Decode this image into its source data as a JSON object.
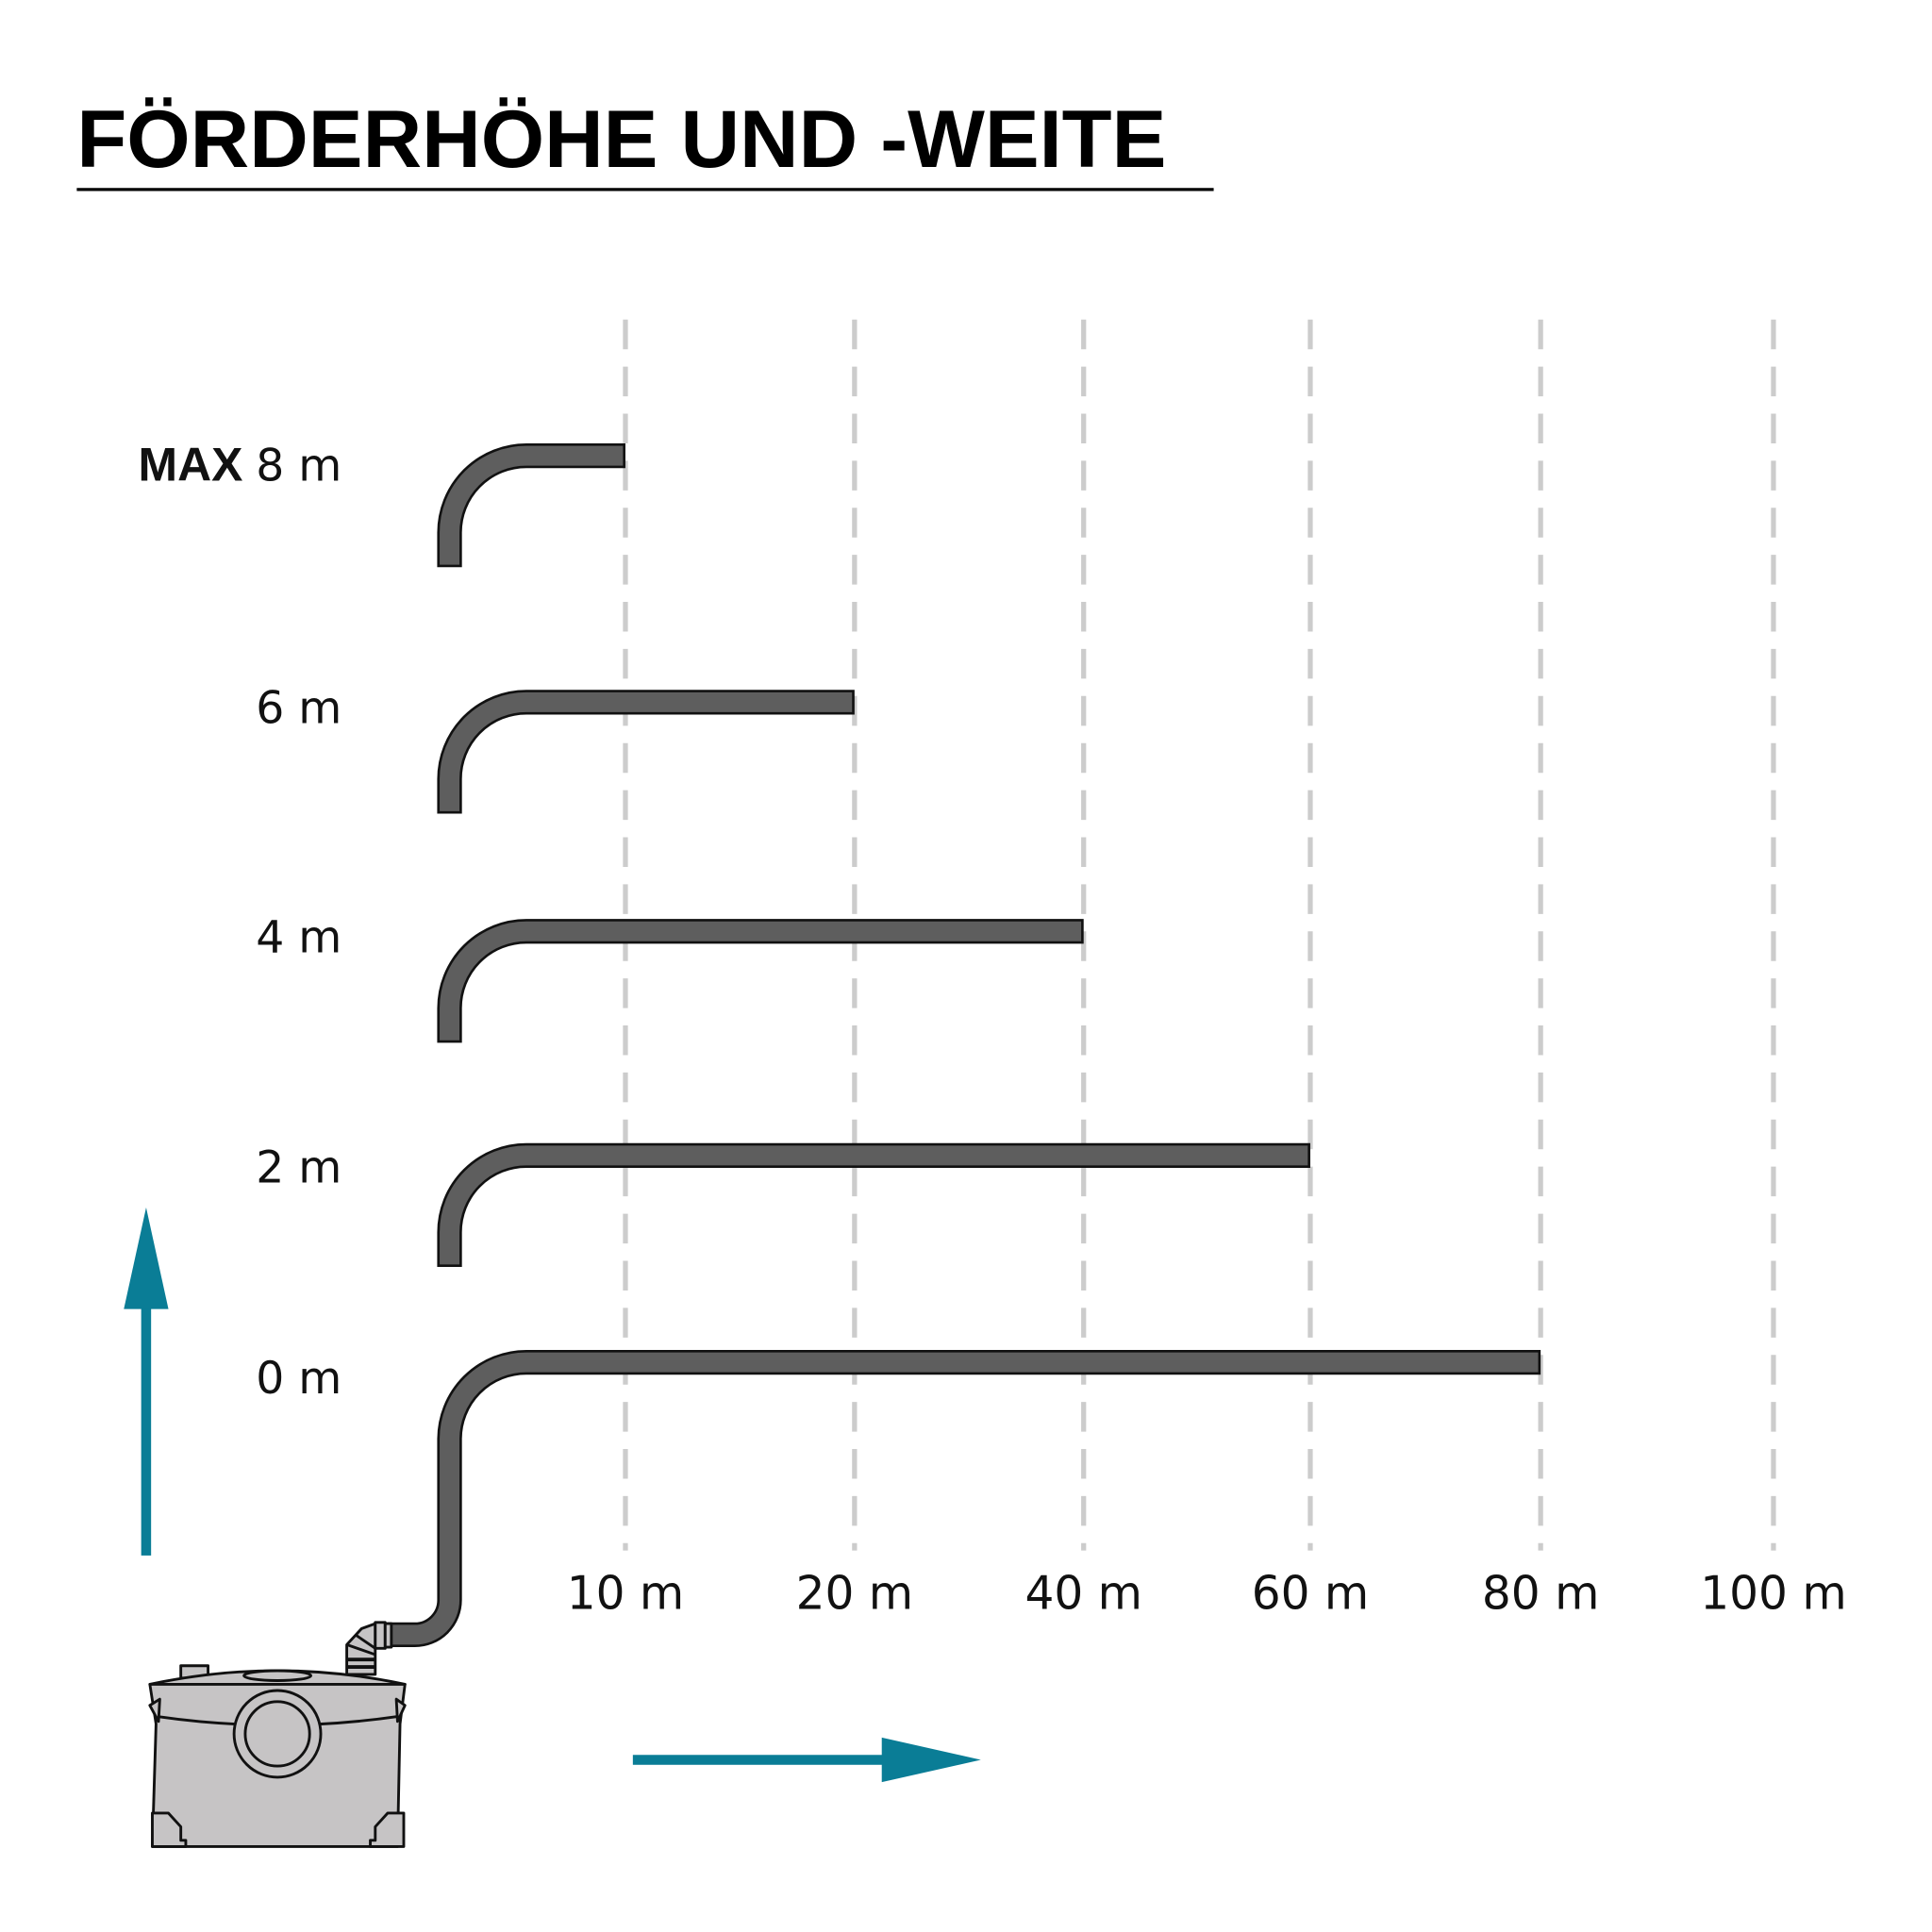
{
  "title": "FÖRDERHÖHE UND -WEITE",
  "colors": {
    "pipe": "#5e5e5e",
    "grid": "#cccccc",
    "arrow": "#0a7d96",
    "pump": "#c6c4c5"
  },
  "chart_data": {
    "type": "bar",
    "orientation": "horizontal",
    "title": "FÖRDERHÖHE UND -WEITE",
    "x_tick_labels": [
      "10 m",
      "20 m",
      "40 m",
      "60 m",
      "80 m",
      "100 m"
    ],
    "y_tick_labels": [
      "8 m",
      "6 m",
      "4 m",
      "2 m",
      "0 m"
    ],
    "max_prefix": "MAX",
    "grid": "vertical dashed",
    "rows": [
      {
        "height_m": 8,
        "label": "8 m",
        "max": true,
        "distance_m": 10
      },
      {
        "height_m": 6,
        "label": "6 m",
        "distance_m": 20
      },
      {
        "height_m": 4,
        "label": "4 m",
        "distance_m": 40
      },
      {
        "height_m": 2,
        "label": "2 m",
        "distance_m": 60
      },
      {
        "height_m": 0,
        "label": "0 m",
        "distance_m": 80
      }
    ]
  },
  "icons": {
    "vertical_arrow": "arrow-up-icon",
    "horizontal_arrow": "arrow-right-icon",
    "pump": "lifting-pump-illustration"
  }
}
